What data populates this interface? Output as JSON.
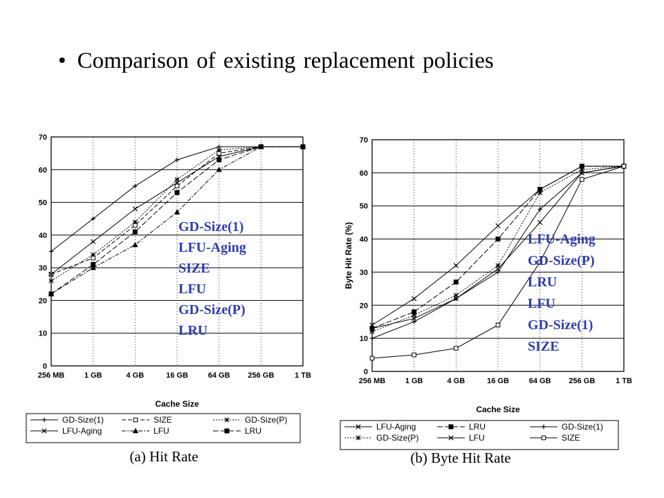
{
  "slide": {
    "bullet": "•",
    "title": "Comparison of existing replacement policies"
  },
  "colors": {
    "annotation": "#2e3cb4",
    "line": "#000000"
  },
  "chart_data": [
    {
      "type": "line",
      "caption": "(a) Hit Rate",
      "xlabel": "Cache Size",
      "ylabel": "",
      "categories": [
        "256 MB",
        "1 GB",
        "4 GB",
        "16 GB",
        "64 GB",
        "256 GB",
        "1 TB"
      ],
      "ylim": [
        0,
        70
      ],
      "yticks": [
        0,
        10,
        20,
        30,
        40,
        50,
        60,
        70
      ],
      "grid": true,
      "legend_position": "bottom",
      "series": [
        {
          "name": "GD-Size(1)",
          "marker": "plus",
          "dash": "",
          "values": [
            35,
            45,
            55,
            63,
            67,
            67,
            67
          ]
        },
        {
          "name": "SIZE",
          "marker": "square-open",
          "dash": "6 3",
          "values": [
            28,
            33,
            43,
            55,
            65,
            67,
            67
          ]
        },
        {
          "name": "GD-Size(P)",
          "marker": "star",
          "dash": "2 2",
          "values": [
            26,
            34,
            44,
            57,
            66,
            67,
            67
          ]
        },
        {
          "name": "LFU-Aging",
          "marker": "x",
          "dash": "",
          "values": [
            28,
            38,
            48,
            56,
            64,
            67,
            67
          ]
        },
        {
          "name": "LFU",
          "marker": "triangle",
          "dash": "6 2 2 2",
          "values": [
            22,
            30,
            37,
            47,
            60,
            67,
            67
          ]
        },
        {
          "name": "LRU",
          "marker": "square-filled",
          "dash": "8 3",
          "values": [
            22,
            31,
            41,
            53,
            63,
            67,
            67
          ]
        }
      ],
      "annotations": [
        "GD-Size(1)",
        "LFU-Aging",
        "SIZE",
        "LFU",
        "GD-Size(P)",
        "LRU"
      ]
    },
    {
      "type": "line",
      "caption": "(b) Byte Hit Rate",
      "xlabel": "Cache Size",
      "ylabel": "Byte Hit Rate (%)",
      "categories": [
        "256 MB",
        "1 GB",
        "4 GB",
        "16 GB",
        "64 GB",
        "256 GB",
        "1 TB"
      ],
      "ylim": [
        0,
        70
      ],
      "yticks": [
        0,
        10,
        20,
        30,
        40,
        50,
        60,
        70
      ],
      "grid": true,
      "legend_position": "bottom",
      "series": [
        {
          "name": "LFU-Aging",
          "marker": "x",
          "dash": "",
          "values": [
            14,
            22,
            32,
            44,
            55,
            62,
            62
          ]
        },
        {
          "name": "LRU",
          "marker": "square-filled",
          "dash": "8 3",
          "values": [
            13,
            18,
            27,
            40,
            55,
            62,
            62
          ]
        },
        {
          "name": "GD-Size(1)",
          "marker": "plus",
          "dash": "",
          "values": [
            10,
            15,
            22,
            30,
            49,
            60,
            62
          ]
        },
        {
          "name": "GD-Size(P)",
          "marker": "star",
          "dash": "2 2",
          "values": [
            12,
            17,
            23,
            32,
            54,
            61,
            62
          ]
        },
        {
          "name": "LFU",
          "marker": "x",
          "dash": "",
          "values": [
            13,
            16,
            22,
            31,
            45,
            60,
            62
          ]
        },
        {
          "name": "SIZE",
          "marker": "square-open",
          "dash": "",
          "values": [
            4,
            5,
            7,
            14,
            33,
            58,
            62
          ]
        }
      ],
      "annotations": [
        "LFU-Aging",
        "GD-Size(P)",
        "LRU",
        "LFU",
        "GD-Size(1)",
        "SIZE"
      ]
    }
  ]
}
